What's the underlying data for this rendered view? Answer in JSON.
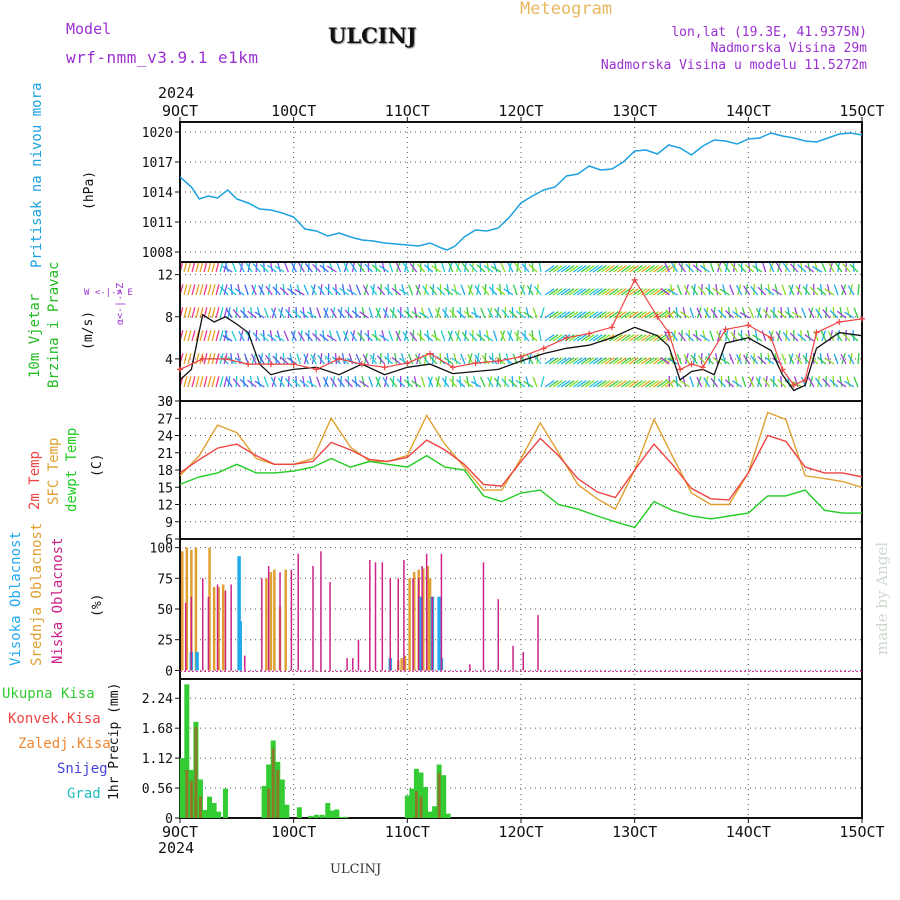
{
  "header": {
    "model_label": "Model",
    "model_name": "wrf-nmm_v3.9.1 e1km",
    "station": "ULCINJ",
    "title": "Meteogram",
    "lonlat": "lon,lat (19.3E, 41.9375N)",
    "elevation": "Nadmorska Visina 29m",
    "model_elevation": "Nadmorska Visina u modelu 11.5272m",
    "footer_station": "ULCINJ",
    "watermark": "made by Angel",
    "year_top": "2024",
    "year_bottom": "2024"
  },
  "colors": {
    "pressure": "#1da1e0",
    "wind_label": "#22bb22",
    "wind_dir": "#9b30d0",
    "temp2m": "#ee4444",
    "sfc": "#e0a030",
    "dewpt": "#22cc22",
    "high_cloud": "#22aaee",
    "mid_cloud": "#e0a030",
    "low_cloud": "#cc2288",
    "precip_total": "#33cc33",
    "precip_conv": "#ee4444",
    "precip_frozen": "#ee8833",
    "snow": "#4444dd",
    "hail": "#22bbbb"
  },
  "chart_data": [
    {
      "type": "line",
      "name": "pressure",
      "label": "Pritisak na nivou mora",
      "unit": "(hPa)",
      "x_categories": [
        "9OCT",
        "10OCT",
        "11OCT",
        "12OCT",
        "13OCT",
        "14OCT",
        "15OCT"
      ],
      "ylim": [
        1007,
        1021
      ],
      "yticks": [
        1008,
        1011,
        1014,
        1017,
        1020
      ],
      "series": [
        {
          "x": [
            0,
            0.1,
            0.17,
            0.25,
            0.33,
            0.42,
            0.5,
            0.6,
            0.7,
            0.8,
            0.9,
            1.0,
            1.1,
            1.2,
            1.3,
            1.4,
            1.5,
            1.6,
            1.7,
            1.8,
            1.9,
            2.0,
            2.1,
            2.2,
            2.3,
            2.35,
            2.42,
            2.5,
            2.6,
            2.7,
            2.8,
            2.9,
            3.0,
            3.1,
            3.2,
            3.3,
            3.4,
            3.5,
            3.6,
            3.7,
            3.8,
            3.9,
            4.0,
            4.1,
            4.2,
            4.3,
            4.4,
            4.5,
            4.6,
            4.7,
            4.8,
            4.9,
            5.0,
            5.1,
            5.2,
            5.3,
            5.4,
            5.5,
            5.6,
            5.7,
            5.8,
            5.9,
            6.0
          ],
          "values": [
            1015.5,
            1014.5,
            1013.3,
            1013.6,
            1013.4,
            1014.2,
            1013.3,
            1012.9,
            1012.3,
            1012.2,
            1011.9,
            1011.5,
            1010.3,
            1010.1,
            1009.6,
            1009.9,
            1009.5,
            1009.2,
            1009.1,
            1008.9,
            1008.8,
            1008.7,
            1008.6,
            1008.9,
            1008.4,
            1008.2,
            1008.6,
            1009.5,
            1010.2,
            1010.1,
            1010.4,
            1011.5,
            1012.9,
            1013.6,
            1014.2,
            1014.5,
            1015.6,
            1015.8,
            1016.6,
            1016.2,
            1016.3,
            1017.0,
            1018.1,
            1018.2,
            1017.8,
            1018.7,
            1018.4,
            1017.7,
            1018.6,
            1019.2,
            1019.1,
            1018.8,
            1019.3,
            1019.4,
            1019.9,
            1019.6,
            1019.4,
            1019.1,
            1019.0,
            1019.4,
            1019.8,
            1019.9,
            1019.7
          ]
        }
      ]
    },
    {
      "type": "line",
      "name": "wind",
      "label_top": "10m Vjetar",
      "label_bottom": "Brzina i Pravac",
      "unit": "(m/s)",
      "compass_ns": "α<-|->Z",
      "compass_we": "W <-|-> E",
      "ylim": [
        0,
        13.2
      ],
      "yticks": [
        0,
        4,
        8,
        12
      ],
      "series": [
        {
          "name": "speed",
          "x": [
            0,
            0.1,
            0.2,
            0.3,
            0.4,
            0.5,
            0.6,
            0.7,
            0.8,
            0.9,
            1.0,
            1.2,
            1.4,
            1.6,
            1.8,
            2.0,
            2.2,
            2.4,
            2.6,
            2.8,
            3.0,
            3.2,
            3.4,
            3.6,
            3.8,
            4.0,
            4.2,
            4.3,
            4.4,
            4.5,
            4.6,
            4.7,
            4.8,
            5.0,
            5.2,
            5.3,
            5.4,
            5.5,
            5.6,
            5.8,
            6.0
          ],
          "values": [
            2,
            3,
            8.2,
            7.5,
            8,
            7.3,
            6.5,
            3.5,
            2.5,
            2.8,
            3,
            3.2,
            2.5,
            3.5,
            2.5,
            3.2,
            3.5,
            2.6,
            2.8,
            3,
            3.8,
            4.5,
            5,
            5.3,
            6,
            7,
            6.2,
            5.2,
            2,
            2.8,
            3,
            2.5,
            5.5,
            6,
            4.8,
            2.5,
            1,
            1.5,
            5,
            6.5,
            6.2
          ]
        },
        {
          "name": "gust",
          "x": [
            0,
            0.2,
            0.4,
            0.6,
            0.8,
            1.0,
            1.2,
            1.4,
            1.6,
            1.8,
            2.0,
            2.2,
            2.4,
            2.6,
            2.8,
            3.0,
            3.2,
            3.4,
            3.6,
            3.8,
            4.0,
            4.2,
            4.3,
            4.4,
            4.5,
            4.6,
            4.8,
            5.0,
            5.2,
            5.3,
            5.4,
            5.5,
            5.6,
            5.8,
            6.0
          ],
          "values": [
            3,
            4,
            4,
            3.5,
            3.5,
            3.5,
            3,
            4,
            3.5,
            3.2,
            3.6,
            4.5,
            3.2,
            3.6,
            3.8,
            4.2,
            5,
            6,
            6.4,
            7,
            11.5,
            8,
            6.5,
            3,
            3.5,
            3.2,
            6.8,
            7.2,
            6,
            3,
            1.5,
            2,
            6.5,
            7.5,
            7.8
          ]
        }
      ]
    },
    {
      "type": "line",
      "name": "temperature",
      "labels": [
        "2m Temp",
        "SFC Temp",
        "dewpt Temp"
      ],
      "unit": "(C)",
      "ylim": [
        6,
        30
      ],
      "yticks": [
        6,
        9,
        12,
        15,
        18,
        21,
        24,
        27,
        30
      ],
      "series": [
        {
          "name": "2m Temp",
          "x": [
            0,
            0.17,
            0.33,
            0.5,
            0.67,
            0.83,
            1.0,
            1.17,
            1.33,
            1.5,
            1.67,
            1.83,
            2.0,
            2.17,
            2.33,
            2.5,
            2.67,
            2.83,
            3.0,
            3.17,
            3.33,
            3.5,
            3.67,
            3.83,
            4.0,
            4.17,
            4.33,
            4.5,
            4.67,
            4.83,
            5.0,
            5.17,
            5.33,
            5.5,
            5.67,
            5.83,
            6.0
          ],
          "values": [
            17.5,
            19.8,
            21.8,
            22.5,
            20.5,
            19,
            19,
            19.5,
            22.8,
            21.5,
            19.8,
            19.5,
            20.2,
            23.2,
            21.5,
            19,
            15.5,
            15.2,
            19.5,
            23.5,
            20.5,
            16.5,
            14.2,
            13.2,
            18,
            22.5,
            19,
            14.8,
            13,
            12.8,
            17.5,
            24,
            23,
            18.5,
            17.5,
            17.5,
            16.8
          ]
        },
        {
          "name": "SFC Temp",
          "x": [
            0,
            0.17,
            0.33,
            0.5,
            0.67,
            0.83,
            1.0,
            1.17,
            1.33,
            1.5,
            1.67,
            1.83,
            2.0,
            2.17,
            2.33,
            2.5,
            2.67,
            2.83,
            3.0,
            3.17,
            3.33,
            3.5,
            3.67,
            3.83,
            4.0,
            4.17,
            4.33,
            4.5,
            4.67,
            4.83,
            5.0,
            5.17,
            5.33,
            5.5,
            5.67,
            5.83,
            6.0
          ],
          "values": [
            17,
            20.5,
            25.8,
            24.5,
            20,
            19,
            19,
            20,
            27,
            22,
            19.5,
            19.5,
            20.5,
            27.5,
            22.5,
            18.5,
            14.5,
            14.5,
            20,
            26.2,
            21,
            15.5,
            13,
            11.2,
            18,
            26.8,
            20.5,
            14,
            12,
            12,
            17.5,
            28,
            26.8,
            17,
            16.5,
            16,
            15
          ]
        },
        {
          "name": "dewpt Temp",
          "x": [
            0,
            0.17,
            0.33,
            0.5,
            0.67,
            0.83,
            1.0,
            1.17,
            1.33,
            1.5,
            1.67,
            1.83,
            2.0,
            2.17,
            2.33,
            2.5,
            2.67,
            2.83,
            3.0,
            3.17,
            3.33,
            3.5,
            3.67,
            3.83,
            4.0,
            4.17,
            4.33,
            4.5,
            4.67,
            4.83,
            5.0,
            5.17,
            5.33,
            5.5,
            5.67,
            5.83,
            6.0
          ],
          "values": [
            15.5,
            16.8,
            17.5,
            19,
            17.5,
            17.5,
            17.8,
            18.5,
            20,
            18.5,
            19.5,
            19,
            18.5,
            20.5,
            18.5,
            18,
            13.5,
            12.5,
            14,
            14.5,
            12,
            11.2,
            10,
            9,
            8,
            12.5,
            11,
            10,
            9.5,
            10,
            10.5,
            13.5,
            13.5,
            14.5,
            11,
            10.5,
            10.5
          ]
        }
      ]
    },
    {
      "type": "bar",
      "name": "cloud",
      "labels": [
        "Visoka Oblacnost",
        "Srednja Oblacnost",
        "Niska Oblacnost"
      ],
      "unit": "(%)",
      "ylim": [
        0,
        100
      ],
      "yticks": [
        0,
        25,
        50,
        75,
        100
      ],
      "series": [
        {
          "name": "Visoka Oblacnost",
          "x": [
            0.1,
            0.15,
            0.52,
            0.53,
            1.85,
            2.12,
            2.22,
            2.28,
            2.3
          ],
          "values": [
            15,
            15,
            93,
            40,
            10,
            60,
            60,
            60,
            10
          ]
        },
        {
          "name": "Srednja Oblacnost",
          "x": [
            0.02,
            0.06,
            0.1,
            0.14,
            0.26,
            0.3,
            0.34,
            0.38,
            0.76,
            0.8,
            0.83,
            0.88,
            0.93,
            1.92,
            1.95,
            1.98,
            2.02,
            2.06,
            2.1,
            2.14,
            2.18,
            2.2
          ],
          "values": [
            97,
            100,
            98,
            100,
            100,
            68,
            68,
            70,
            75,
            80,
            82,
            52,
            82,
            8,
            10,
            12,
            75,
            80,
            82,
            83,
            85,
            75
          ]
        },
        {
          "name": "Niska Oblacnost",
          "x": [
            0.05,
            0.1,
            0.2,
            0.25,
            0.33,
            0.4,
            0.45,
            0.57,
            0.72,
            0.78,
            0.88,
            0.98,
            1.04,
            1.17,
            1.24,
            1.32,
            1.47,
            1.52,
            1.57,
            1.67,
            1.72,
            1.78,
            1.85,
            1.92,
            1.97,
            2.05,
            2.1,
            2.13,
            2.17,
            2.22,
            2.3,
            2.55,
            2.67,
            2.8,
            2.93,
            3.02,
            3.15
          ],
          "values": [
            55,
            60,
            75,
            60,
            70,
            65,
            70,
            12,
            75,
            85,
            80,
            82,
            95,
            85,
            97,
            72,
            10,
            10,
            25,
            90,
            88,
            88,
            75,
            75,
            90,
            75,
            75,
            85,
            95,
            60,
            95,
            5,
            88,
            58,
            20,
            15,
            45
          ]
        }
      ]
    },
    {
      "type": "bar",
      "name": "precipitation",
      "labels": [
        "Ukupna Kisa",
        "Konvek.Kisa",
        "Zaledj.Kisa",
        "Snijeg",
        "Grad"
      ],
      "unit": "1hr Precip (mm)",
      "x_categories": [
        "9OCT",
        "10OCT",
        "11OCT",
        "12OCT",
        "13OCT",
        "14OCT",
        "15OCT"
      ],
      "ylim": [
        0,
        2.6
      ],
      "yticks": [
        0,
        0.56,
        1.12,
        1.68,
        2.24
      ],
      "series": [
        {
          "name": "Ukupna Kisa",
          "x": [
            0.02,
            0.06,
            0.1,
            0.14,
            0.18,
            0.22,
            0.26,
            0.3,
            0.34,
            0.4,
            0.74,
            0.78,
            0.82,
            0.86,
            0.9,
            0.94,
            1.05,
            1.15,
            1.2,
            1.25,
            1.3,
            1.34,
            1.38,
            1.42,
            1.46,
            2.0,
            2.04,
            2.08,
            2.12,
            2.16,
            2.2,
            2.24,
            2.28,
            2.32,
            2.36
          ],
          "values": [
            1.12,
            2.5,
            0.9,
            1.8,
            0.72,
            0.15,
            0.4,
            0.28,
            0.12,
            0.55,
            0.6,
            1.0,
            1.45,
            1.05,
            0.72,
            0.25,
            0.2,
            0.04,
            0.06,
            0.06,
            0.28,
            0.14,
            0.16,
            0.02,
            0.02,
            0.42,
            0.55,
            0.92,
            0.85,
            0.58,
            0.12,
            0.22,
            1.0,
            0.8,
            0.08
          ]
        },
        {
          "name": "Konvek.Kisa",
          "x": [
            0.06,
            0.1,
            0.14,
            0.18,
            0.78,
            0.82,
            0.86,
            2.08,
            2.12,
            2.28
          ],
          "values": [
            0.9,
            0.7,
            1.7,
            0.4,
            0.55,
            1.3,
            0.9,
            0.5,
            0.4,
            0.85
          ]
        }
      ]
    }
  ]
}
